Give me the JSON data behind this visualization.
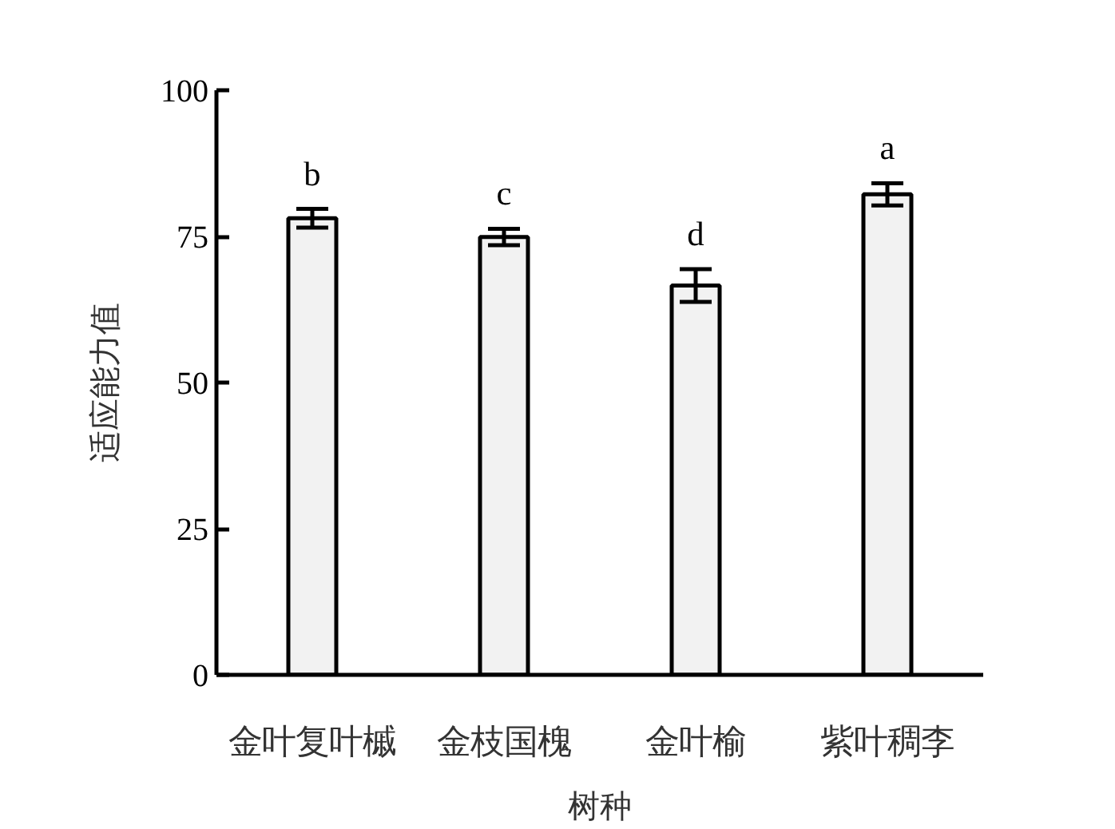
{
  "chart_data": {
    "type": "bar",
    "categories": [
      "金叶复叶槭",
      "金枝国槐",
      "金叶榆",
      "紫叶稠李"
    ],
    "values": [
      78.1,
      74.9,
      66.6,
      82.2
    ],
    "errors": [
      1.6,
      1.4,
      2.8,
      1.9
    ],
    "color": "#f2f2f2",
    "xlabel": "树种",
    "ylabel": "适应能力值",
    "ylim": [
      0,
      100
    ],
    "yticks": [
      0,
      25,
      50,
      75,
      100
    ],
    "grid": false,
    "annotations": [
      "b",
      "c",
      "d",
      "a"
    ]
  }
}
